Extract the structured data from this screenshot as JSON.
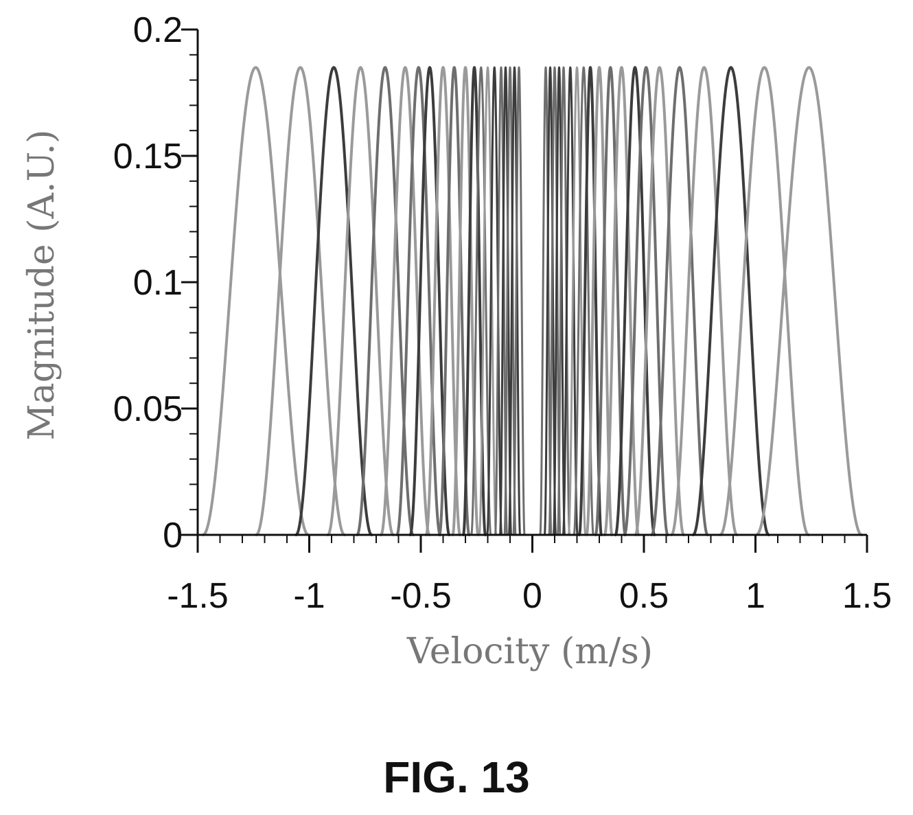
{
  "figure_label": "FIG. 13",
  "chart_data": {
    "type": "line",
    "title": "",
    "xlabel": "Velocity (m/s)",
    "ylabel": "Magnitude (A.U.)",
    "xlim": [
      -1.5,
      1.5
    ],
    "ylim": [
      0,
      0.2
    ],
    "x_ticks": [
      -1.5,
      -1,
      -0.5,
      0,
      0.5,
      1,
      1.5
    ],
    "x_tick_labels": [
      "-1.5",
      "-1",
      "-0.5",
      "0",
      "0.5",
      "1",
      "1.5"
    ],
    "y_ticks": [
      0,
      0.05,
      0.1,
      0.15,
      0.2
    ],
    "y_tick_labels": [
      "0",
      "0.05",
      "0.1",
      "0.15",
      "0.2"
    ],
    "grid": false,
    "legend": "none",
    "peak_magnitude": 0.185,
    "colors": {
      "light": "#9a9a9a",
      "medium": "#6e6e6e",
      "dark": "#3c3c3c",
      "axis": "#111111"
    },
    "series": [
      {
        "center": -1.24,
        "color": "light"
      },
      {
        "center": -1.04,
        "color": "light"
      },
      {
        "center": -0.89,
        "color": "dark"
      },
      {
        "center": -0.77,
        "color": "light"
      },
      {
        "center": -0.66,
        "color": "medium"
      },
      {
        "center": -0.57,
        "color": "light"
      },
      {
        "center": -0.51,
        "color": "medium"
      },
      {
        "center": -0.46,
        "color": "dark"
      },
      {
        "center": -0.4,
        "color": "light"
      },
      {
        "center": -0.35,
        "color": "medium"
      },
      {
        "center": -0.3,
        "color": "light"
      },
      {
        "center": -0.26,
        "color": "dark"
      },
      {
        "center": -0.23,
        "color": "medium"
      },
      {
        "center": -0.2,
        "color": "light"
      },
      {
        "center": -0.17,
        "color": "dark"
      },
      {
        "center": -0.14,
        "color": "medium"
      },
      {
        "center": -0.12,
        "color": "dark"
      },
      {
        "center": -0.1,
        "color": "medium"
      },
      {
        "center": -0.08,
        "color": "dark"
      },
      {
        "center": -0.06,
        "color": "medium"
      },
      {
        "center": 0.06,
        "color": "medium"
      },
      {
        "center": 0.08,
        "color": "dark"
      },
      {
        "center": 0.1,
        "color": "medium"
      },
      {
        "center": 0.12,
        "color": "dark"
      },
      {
        "center": 0.14,
        "color": "medium"
      },
      {
        "center": 0.17,
        "color": "dark"
      },
      {
        "center": 0.2,
        "color": "light"
      },
      {
        "center": 0.23,
        "color": "medium"
      },
      {
        "center": 0.26,
        "color": "dark"
      },
      {
        "center": 0.3,
        "color": "light"
      },
      {
        "center": 0.35,
        "color": "medium"
      },
      {
        "center": 0.4,
        "color": "light"
      },
      {
        "center": 0.46,
        "color": "dark"
      },
      {
        "center": 0.51,
        "color": "medium"
      },
      {
        "center": 0.57,
        "color": "light"
      },
      {
        "center": 0.66,
        "color": "medium"
      },
      {
        "center": 0.77,
        "color": "light"
      },
      {
        "center": 0.89,
        "color": "dark"
      },
      {
        "center": 1.04,
        "color": "light"
      },
      {
        "center": 1.24,
        "color": "light"
      }
    ]
  }
}
